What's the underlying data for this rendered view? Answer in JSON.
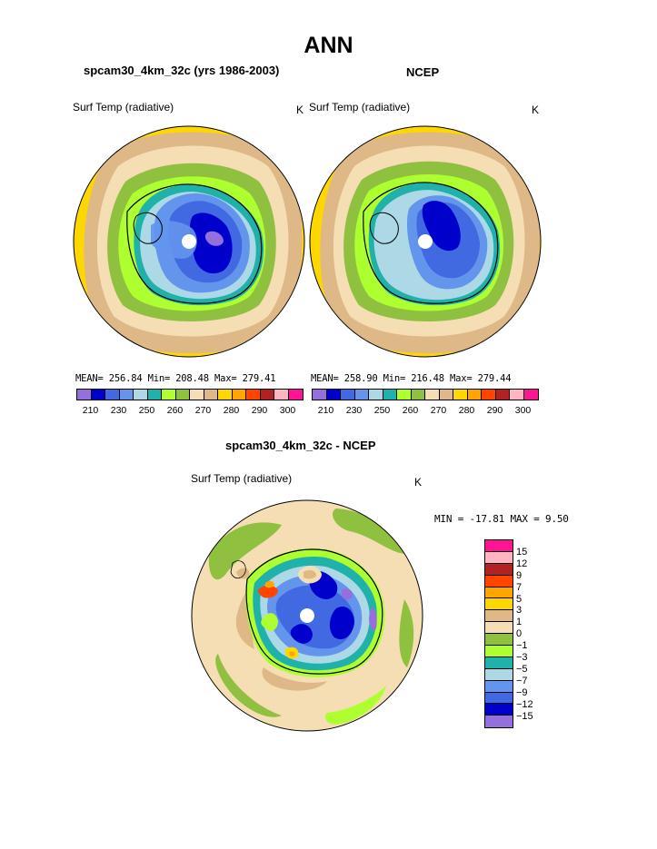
{
  "title": "ANN",
  "panels": [
    {
      "name": "spcam30_4km_32c (yrs 1986-2003)",
      "variable": "Surf Temp (radiative)",
      "units": "K",
      "stats": "MEAN= 256.84  Min= 208.48  Max= 279.41",
      "colorbar_colors": [
        "#9370db",
        "#0000cd",
        "#4169e1",
        "#6495ed",
        "#add8e6",
        "#20b2aa",
        "#adff2f",
        "#90c040",
        "#f5deb3",
        "#deb887",
        "#ffd700",
        "#ffa500",
        "#ff4500",
        "#b22222",
        "#ffb6c1",
        "#ff1493"
      ],
      "colorbar_ticks": [
        "210",
        "230",
        "250",
        "260",
        "270",
        "280",
        "290",
        "300"
      ]
    },
    {
      "name": "NCEP",
      "variable": "Surf Temp (radiative)",
      "units": "K",
      "stats": "MEAN= 258.90  Min= 216.48  Max= 279.44",
      "colorbar_colors": [
        "#9370db",
        "#0000cd",
        "#4169e1",
        "#6495ed",
        "#add8e6",
        "#20b2aa",
        "#adff2f",
        "#90c040",
        "#f5deb3",
        "#deb887",
        "#ffd700",
        "#ffa500",
        "#ff4500",
        "#b22222",
        "#ffb6c1",
        "#ff1493"
      ],
      "colorbar_ticks": [
        "210",
        "230",
        "250",
        "260",
        "270",
        "280",
        "290",
        "300"
      ]
    }
  ],
  "difference": {
    "name": "spcam30_4km_32c - NCEP",
    "variable": "Surf Temp (radiative)",
    "units": "K",
    "stats": "MIN = -17.81 MAX =   9.50",
    "colorbar_colors": [
      "#ff1493",
      "#ffb6c1",
      "#b22222",
      "#ff4500",
      "#ffa500",
      "#ffd700",
      "#deb887",
      "#f5deb3",
      "#90c040",
      "#adff2f",
      "#20b2aa",
      "#add8e6",
      "#6495ed",
      "#4169e1",
      "#0000cd",
      "#9370db"
    ],
    "colorbar_ticks": [
      "15",
      "12",
      "9",
      "7",
      "5",
      "3",
      "1",
      "0",
      "−1",
      "−3",
      "−5",
      "−7",
      "−9",
      "−12",
      "−15"
    ]
  }
}
